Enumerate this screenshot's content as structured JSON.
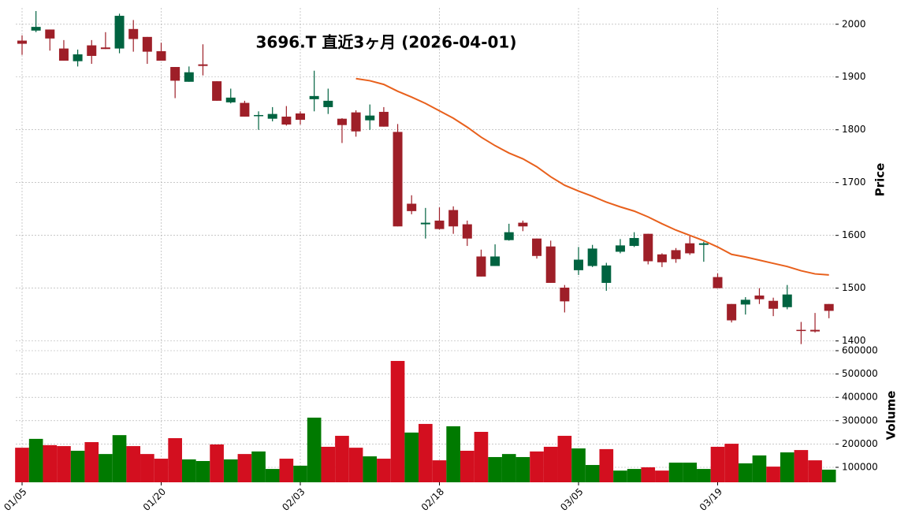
{
  "chart_data": [
    {
      "type": "candlestick",
      "title": "3696.T 直近3ヶ月 (2026-04-01)",
      "ylabel": "Price",
      "categories": [
        "01/05",
        null,
        null,
        null,
        null,
        null,
        null,
        null,
        null,
        null,
        "01/20",
        null,
        null,
        null,
        null,
        null,
        null,
        null,
        null,
        null,
        "02/03",
        null,
        null,
        null,
        null,
        null,
        null,
        null,
        null,
        null,
        "02/18",
        null,
        null,
        null,
        null,
        null,
        null,
        null,
        null,
        null,
        "03/05",
        null,
        null,
        null,
        null,
        null,
        null,
        null,
        null,
        null,
        "03/19",
        null,
        null,
        null,
        null,
        null,
        null,
        null,
        null
      ],
      "open": [
        1969,
        1988,
        1990,
        1954,
        1930,
        1960,
        1956,
        1954,
        1991,
        1976,
        1949,
        1919,
        1891,
        1924,
        1892,
        1852,
        1851,
        1826,
        1821,
        1825,
        1831,
        1858,
        1843,
        1821,
        1833,
        1818,
        1834,
        1796,
        1660,
        1621,
        1628,
        1648,
        1621,
        1560,
        1542,
        1591,
        1624,
        1594,
        1579,
        1501,
        1534,
        1542,
        1510,
        1569,
        1580,
        1603,
        1564,
        1572,
        1585,
        1582,
        1521,
        1470,
        1469,
        1486,
        1476,
        1464,
        1421,
        1421,
        1470
      ],
      "high": [
        1979,
        2025,
        1990,
        1970,
        1952,
        1970,
        1985,
        2020,
        2008,
        1976,
        1965,
        1919,
        1920,
        1962,
        1892,
        1878,
        1855,
        1835,
        1843,
        1845,
        1835,
        1912,
        1878,
        1822,
        1837,
        1848,
        1843,
        1811,
        1676,
        1652,
        1653,
        1655,
        1628,
        1573,
        1583,
        1622,
        1628,
        1594,
        1590,
        1506,
        1578,
        1582,
        1548,
        1593,
        1606,
        1603,
        1566,
        1576,
        1600,
        1588,
        1528,
        1470,
        1483,
        1500,
        1482,
        1506,
        1436,
        1453,
        1470
      ],
      "low": [
        1942,
        1985,
        1950,
        1931,
        1920,
        1925,
        1953,
        1945,
        1948,
        1925,
        1931,
        1860,
        1891,
        1903,
        1855,
        1850,
        1825,
        1800,
        1816,
        1808,
        1810,
        1835,
        1830,
        1775,
        1787,
        1800,
        1806,
        1617,
        1640,
        1594,
        1611,
        1603,
        1580,
        1522,
        1542,
        1590,
        1608,
        1556,
        1510,
        1454,
        1525,
        1540,
        1495,
        1566,
        1578,
        1545,
        1540,
        1548,
        1563,
        1550,
        1500,
        1435,
        1450,
        1470,
        1447,
        1460,
        1394,
        1416,
        1443
      ],
      "close": [
        1963,
        1995,
        1973,
        1931,
        1943,
        1940,
        1953,
        2016,
        1972,
        1948,
        1931,
        1893,
        1909,
        1921,
        1855,
        1861,
        1825,
        1828,
        1830,
        1810,
        1819,
        1864,
        1855,
        1809,
        1797,
        1827,
        1806,
        1617,
        1646,
        1624,
        1612,
        1617,
        1594,
        1522,
        1560,
        1606,
        1617,
        1561,
        1510,
        1475,
        1554,
        1575,
        1543,
        1581,
        1595,
        1551,
        1549,
        1555,
        1566,
        1585,
        1500,
        1439,
        1478,
        1479,
        1461,
        1488,
        1419,
        1418,
        1457
      ],
      "up_color": "#006340",
      "down_color": "#9e1f28",
      "series": [
        {
          "color": "#e8601c",
          "values": [
            null,
            null,
            null,
            null,
            null,
            null,
            null,
            null,
            null,
            null,
            null,
            null,
            null,
            null,
            null,
            null,
            null,
            null,
            null,
            null,
            null,
            null,
            null,
            null,
            1897,
            1893,
            1886,
            1873,
            1862,
            1850,
            1836,
            1822,
            1805,
            1786,
            1770,
            1756,
            1745,
            1730,
            1711,
            1695,
            1684,
            1674,
            1663,
            1654,
            1646,
            1635,
            1622,
            1610,
            1600,
            1590,
            1578,
            1564,
            1559,
            1553,
            1547,
            1541,
            1533,
            1527,
            1525
          ]
        }
      ],
      "ylim": [
        1389,
        2031
      ],
      "yticks": [
        1400,
        1500,
        1600,
        1700,
        1800,
        1900,
        2000
      ],
      "grid": true
    },
    {
      "type": "bar",
      "ylabel": "Volume",
      "values": [
        184000,
        222000,
        195000,
        191000,
        171000,
        208000,
        157000,
        238000,
        191000,
        157000,
        137000,
        225000,
        134000,
        127000,
        198000,
        134000,
        157000,
        168000,
        93000,
        137000,
        107000,
        313000,
        188000,
        235000,
        184000,
        147000,
        137000,
        556000,
        249000,
        286000,
        130000,
        276000,
        171000,
        252000,
        144000,
        157000,
        144000,
        168000,
        188000,
        235000,
        181000,
        110000,
        178000,
        86000,
        93000,
        100000,
        86000,
        120000,
        120000,
        93000,
        188000,
        201000,
        117000,
        151000,
        103000,
        164000,
        174000,
        130000,
        90000
      ],
      "up_color": "#007a00",
      "down_color": "#d30f1f",
      "ylim": [
        35800,
        613500
      ],
      "yticks": [
        100000,
        200000,
        300000,
        400000,
        500000,
        600000
      ],
      "grid": true
    }
  ]
}
